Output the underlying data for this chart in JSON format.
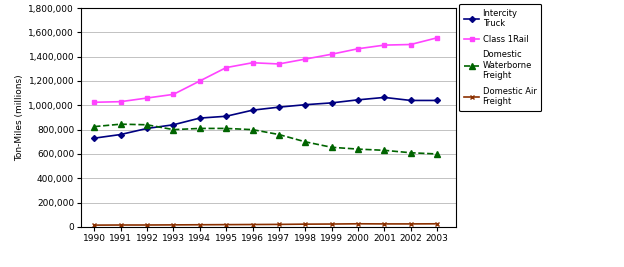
{
  "years": [
    1990,
    1991,
    1992,
    1993,
    1994,
    1995,
    1996,
    1997,
    1998,
    1999,
    2000,
    2001,
    2002,
    2003
  ],
  "intercity_truck": [
    730000,
    760000,
    810000,
    840000,
    895000,
    910000,
    960000,
    985000,
    1005000,
    1020000,
    1045000,
    1065000,
    1040000,
    1040000
  ],
  "class1_rail": [
    1025000,
    1030000,
    1060000,
    1090000,
    1200000,
    1310000,
    1350000,
    1340000,
    1380000,
    1420000,
    1465000,
    1495000,
    1500000,
    1555000
  ],
  "domestic_waterborne": [
    825000,
    845000,
    840000,
    800000,
    810000,
    810000,
    800000,
    760000,
    700000,
    655000,
    640000,
    630000,
    610000,
    600000
  ],
  "domestic_air": [
    15000,
    16000,
    16000,
    17000,
    18000,
    19000,
    20000,
    21000,
    23000,
    24000,
    26000,
    25000,
    25000,
    26000
  ],
  "truck_color": "#000080",
  "rail_color": "#FF44FF",
  "water_color": "#006400",
  "air_color": "#8B3000",
  "ylabel": "Ton-Miles (millions)",
  "ylim": [
    0,
    1800000
  ],
  "yticks": [
    0,
    200000,
    400000,
    600000,
    800000,
    1000000,
    1200000,
    1400000,
    1600000,
    1800000
  ],
  "bg_color": "#FFFFFF",
  "plot_bg_color": "#FFFFFF",
  "legend_labels": [
    "Intercity\nTruck",
    "Class 1Rail",
    "Domestic\nWaterborne\nFreight",
    "Domestic Air\nFreight"
  ],
  "figwidth": 6.24,
  "figheight": 2.67,
  "dpi": 100
}
